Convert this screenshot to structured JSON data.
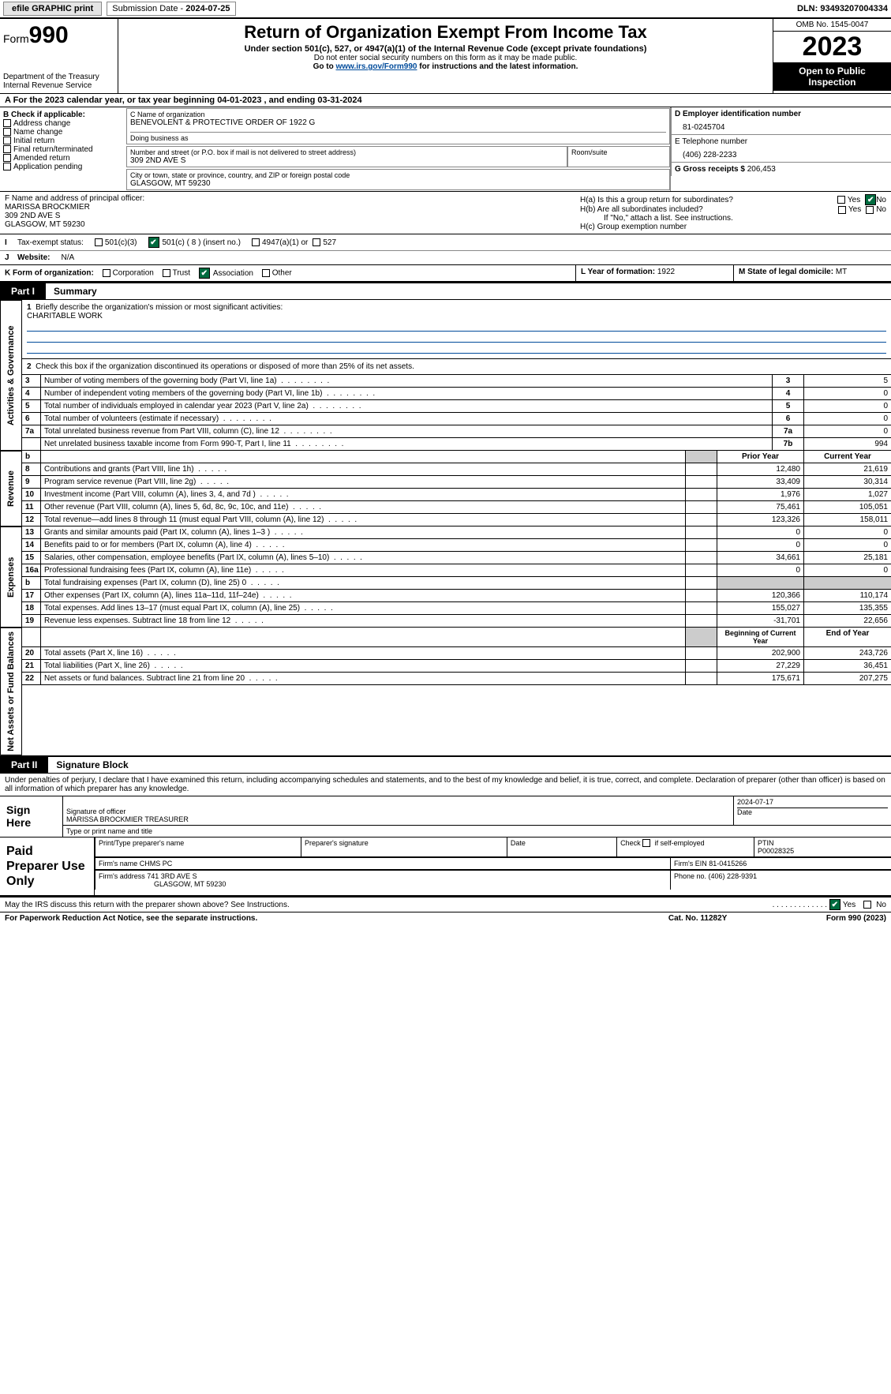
{
  "topbar": {
    "efile": "efile GRAPHIC print",
    "sub_label": "Submission Date - ",
    "sub_date": "2024-07-25",
    "dln_label": "DLN: ",
    "dln": "93493207004334"
  },
  "header": {
    "form_word": "Form",
    "form_num": "990",
    "dept": "Department of the Treasury\nInternal Revenue Service",
    "title": "Return of Organization Exempt From Income Tax",
    "sub": "Under section 501(c), 527, or 4947(a)(1) of the Internal Revenue Code (except private foundations)",
    "note1": "Do not enter social security numbers on this form as it may be made public.",
    "note2_pre": "Go to ",
    "note2_link": "www.irs.gov/Form990",
    "note2_post": " for instructions and the latest information.",
    "omb": "OMB No. 1545-0047",
    "year": "2023",
    "inspect": "Open to Public Inspection"
  },
  "rowA": "A For the 2023 calendar year, or tax year beginning 04-01-2023   , and ending 03-31-2024",
  "boxB": {
    "title": "B Check if applicable:",
    "opts": [
      "Address change",
      "Name change",
      "Initial return",
      "Final return/terminated",
      "Amended return",
      "Application pending"
    ]
  },
  "boxC": {
    "name_lbl": "C Name of organization",
    "name": "BENEVOLENT & PROTECTIVE ORDER OF 1922 G",
    "dba_lbl": "Doing business as",
    "addr_lbl": "Number and street (or P.O. box if mail is not delivered to street address)",
    "room_lbl": "Room/suite",
    "addr": "309 2ND AVE S",
    "city_lbl": "City or town, state or province, country, and ZIP or foreign postal code",
    "city": "GLASGOW, MT  59230"
  },
  "boxD": {
    "lbl": "D Employer identification number",
    "val": "81-0245704"
  },
  "boxE": {
    "lbl": "E Telephone number",
    "val": "(406) 228-2233"
  },
  "boxG": {
    "lbl": "G Gross receipts $ ",
    "val": "206,453"
  },
  "boxF": {
    "lbl": "F  Name and address of principal officer:",
    "name": "MARISSA BROCKMIER",
    "addr1": "309 2ND AVE S",
    "addr2": "GLASGOW, MT  59230"
  },
  "boxH": {
    "a": "H(a)  Is this a group return for subordinates?",
    "b": "H(b)  Are all subordinates included?",
    "note": "If \"No,\" attach a list. See instructions.",
    "c": "H(c)  Group exemption number",
    "yes": "Yes",
    "no": "No"
  },
  "taxExempt": {
    "lbl": "Tax-exempt status:",
    "o1": "501(c)(3)",
    "o2": "501(c) ( 8 ) (insert no.)",
    "o3": "4947(a)(1) or",
    "o4": "527"
  },
  "website": {
    "lbl": "Website:",
    "val": "N/A"
  },
  "boxK": {
    "lbl": "K Form of organization:",
    "o1": "Corporation",
    "o2": "Trust",
    "o3": "Association",
    "o4": "Other"
  },
  "boxL": {
    "lbl": "L Year of formation: ",
    "val": "1922"
  },
  "boxM": {
    "lbl": "M State of legal domicile: ",
    "val": "MT"
  },
  "part1": {
    "tab": "Part I",
    "title": "Summary"
  },
  "mission": {
    "lbl": "Briefly describe the organization's mission or most significant activities:",
    "text": "CHARITABLE WORK"
  },
  "line2": "Check this box       if the organization discontinued its operations or disposed of more than 25% of its net assets.",
  "govRows": [
    {
      "n": "3",
      "t": "Number of voting members of the governing body (Part VI, line 1a)",
      "c": "3",
      "v": "5"
    },
    {
      "n": "4",
      "t": "Number of independent voting members of the governing body (Part VI, line 1b)",
      "c": "4",
      "v": "0"
    },
    {
      "n": "5",
      "t": "Total number of individuals employed in calendar year 2023 (Part V, line 2a)",
      "c": "5",
      "v": "0"
    },
    {
      "n": "6",
      "t": "Total number of volunteers (estimate if necessary)",
      "c": "6",
      "v": "0"
    },
    {
      "n": "7a",
      "t": "Total unrelated business revenue from Part VIII, column (C), line 12",
      "c": "7a",
      "v": "0"
    },
    {
      "n": "",
      "t": "Net unrelated business taxable income from Form 990-T, Part I, line 11",
      "c": "7b",
      "v": "994"
    }
  ],
  "sideLabels": {
    "gov": "Activities & Governance",
    "rev": "Revenue",
    "exp": "Expenses",
    "net": "Net Assets or Fund Balances"
  },
  "revHdr": {
    "prior": "Prior Year",
    "curr": "Current Year"
  },
  "revRows": [
    {
      "n": "8",
      "t": "Contributions and grants (Part VIII, line 1h)",
      "p": "12,480",
      "c": "21,619"
    },
    {
      "n": "9",
      "t": "Program service revenue (Part VIII, line 2g)",
      "p": "33,409",
      "c": "30,314"
    },
    {
      "n": "10",
      "t": "Investment income (Part VIII, column (A), lines 3, 4, and 7d )",
      "p": "1,976",
      "c": "1,027"
    },
    {
      "n": "11",
      "t": "Other revenue (Part VIII, column (A), lines 5, 6d, 8c, 9c, 10c, and 11e)",
      "p": "75,461",
      "c": "105,051"
    },
    {
      "n": "12",
      "t": "Total revenue—add lines 8 through 11 (must equal Part VIII, column (A), line 12)",
      "p": "123,326",
      "c": "158,011"
    }
  ],
  "expRows": [
    {
      "n": "13",
      "t": "Grants and similar amounts paid (Part IX, column (A), lines 1–3 )",
      "p": "0",
      "c": "0"
    },
    {
      "n": "14",
      "t": "Benefits paid to or for members (Part IX, column (A), line 4)",
      "p": "0",
      "c": "0"
    },
    {
      "n": "15",
      "t": "Salaries, other compensation, employee benefits (Part IX, column (A), lines 5–10)",
      "p": "34,661",
      "c": "25,181"
    },
    {
      "n": "16a",
      "t": "Professional fundraising fees (Part IX, column (A), line 11e)",
      "p": "0",
      "c": "0"
    },
    {
      "n": "b",
      "t": "Total fundraising expenses (Part IX, column (D), line 25) 0",
      "p": "",
      "c": "",
      "grey": true
    },
    {
      "n": "17",
      "t": "Other expenses (Part IX, column (A), lines 11a–11d, 11f–24e)",
      "p": "120,366",
      "c": "110,174"
    },
    {
      "n": "18",
      "t": "Total expenses. Add lines 13–17 (must equal Part IX, column (A), line 25)",
      "p": "155,027",
      "c": "135,355"
    },
    {
      "n": "19",
      "t": "Revenue less expenses. Subtract line 18 from line 12",
      "p": "-31,701",
      "c": "22,656"
    }
  ],
  "netHdr": {
    "prior": "Beginning of Current Year",
    "curr": "End of Year"
  },
  "netRows": [
    {
      "n": "20",
      "t": "Total assets (Part X, line 16)",
      "p": "202,900",
      "c": "243,726"
    },
    {
      "n": "21",
      "t": "Total liabilities (Part X, line 26)",
      "p": "27,229",
      "c": "36,451"
    },
    {
      "n": "22",
      "t": "Net assets or fund balances. Subtract line 21 from line 20",
      "p": "175,671",
      "c": "207,275"
    }
  ],
  "part2": {
    "tab": "Part II",
    "title": "Signature Block"
  },
  "penalty": "Under penalties of perjury, I declare that I have examined this return, including accompanying schedules and statements, and to the best of my knowledge and belief, it is true, correct, and complete. Declaration of preparer (other than officer) is based on all information of which preparer has any knowledge.",
  "sign": {
    "here": "Sign Here",
    "sig_lbl": "Signature of officer",
    "name": "MARISSA BROCKMIER  TREASURER",
    "type_lbl": "Type or print name and title",
    "date_lbl": "Date",
    "date": "2024-07-17"
  },
  "paid": {
    "label": "Paid Preparer Use Only",
    "c1": "Print/Type preparer's name",
    "c2": "Preparer's signature",
    "c3": "Date",
    "c4_pre": "Check",
    "c4_post": "if self-employed",
    "ptin_lbl": "PTIN",
    "ptin": "P00028325",
    "firm_lbl": "Firm's name      ",
    "firm": "CHMS PC",
    "ein_lbl": "Firm's EIN  ",
    "ein": "81-0415266",
    "addr_lbl": "Firm's address ",
    "addr1": "741 3RD AVE S",
    "addr2": "GLASGOW, MT  59230",
    "phone_lbl": "Phone no. ",
    "phone": "(406) 228-9391"
  },
  "discuss": {
    "q": "May the IRS discuss this return with the preparer shown above? See Instructions.",
    "yes": "Yes",
    "no": "No"
  },
  "footer": {
    "l": "For Paperwork Reduction Act Notice, see the separate instructions.",
    "m": "Cat. No. 11282Y",
    "r": "Form 990 (2023)"
  }
}
